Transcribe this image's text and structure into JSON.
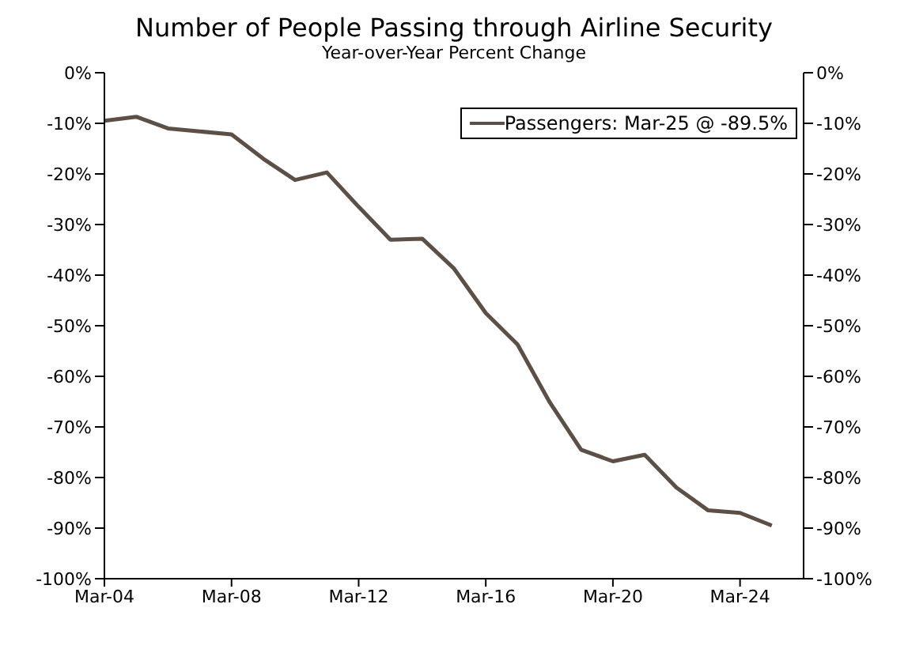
{
  "chart_data": {
    "type": "line",
    "title": "Number of People Passing through Airline Security",
    "subtitle": "Year-over-Year Percent Change",
    "x": [
      "--03-04",
      "--03-05",
      "--03-06",
      "--03-07",
      "--03-08",
      "--03-09",
      "--03-10",
      "--03-11",
      "--03-12",
      "--03-13",
      "--03-14",
      "--03-15",
      "--03-16",
      "--03-17",
      "--03-18",
      "--03-19",
      "--03-20",
      "--03-21",
      "--03-22",
      "--03-23",
      "--03-24",
      "--03-25"
    ],
    "series": [
      {
        "name": "Passengers: Mar-25 @ -89.5%",
        "color": "#5c5046",
        "values": [
          -9.5,
          -8.7,
          -11,
          -11.6,
          -12.2,
          -17,
          -21.2,
          -19.7,
          -26.5,
          -33,
          -32.8,
          -38.7,
          -47.5,
          -53.7,
          -65,
          -74.5,
          -76.8,
          -75.5,
          -82,
          -86.5,
          -87,
          -89.5
        ]
      }
    ],
    "xlim": [
      "--03-04",
      "--03-26"
    ],
    "xticks": [
      {
        "value": "--03-04",
        "label": "Mar-04"
      },
      {
        "value": "--03-08",
        "label": "Mar-08"
      },
      {
        "value": "--03-12",
        "label": "Mar-12"
      },
      {
        "value": "--03-16",
        "label": "Mar-16"
      },
      {
        "value": "--03-20",
        "label": "Mar-20"
      },
      {
        "value": "--03-24",
        "label": "Mar-24"
      }
    ],
    "ylim": [
      -100,
      0
    ],
    "yticks": [
      {
        "value": 0,
        "label": "0%"
      },
      {
        "value": -10,
        "label": "-10%"
      },
      {
        "value": -20,
        "label": "-20%"
      },
      {
        "value": -30,
        "label": "-30%"
      },
      {
        "value": -40,
        "label": "-40%"
      },
      {
        "value": -50,
        "label": "-50%"
      },
      {
        "value": -60,
        "label": "-60%"
      },
      {
        "value": -70,
        "label": "-70%"
      },
      {
        "value": -80,
        "label": "-80%"
      },
      {
        "value": -90,
        "label": "-90%"
      },
      {
        "value": -100,
        "label": "-100%"
      }
    ],
    "y2lim": [
      -100,
      0
    ],
    "y2ticks": [
      {
        "value": 0,
        "label": "0%"
      },
      {
        "value": -10,
        "label": "-10%"
      },
      {
        "value": -20,
        "label": "-20%"
      },
      {
        "value": -30,
        "label": "-30%"
      },
      {
        "value": -40,
        "label": "-40%"
      },
      {
        "value": -50,
        "label": "-50%"
      },
      {
        "value": -60,
        "label": "-60%"
      },
      {
        "value": -70,
        "label": "-70%"
      },
      {
        "value": -80,
        "label": "-80%"
      },
      {
        "value": -90,
        "label": "-90%"
      },
      {
        "value": -100,
        "label": "-100%"
      }
    ],
    "legend": "top right",
    "grid": false,
    "marker": "none",
    "line_style": "solid"
  }
}
